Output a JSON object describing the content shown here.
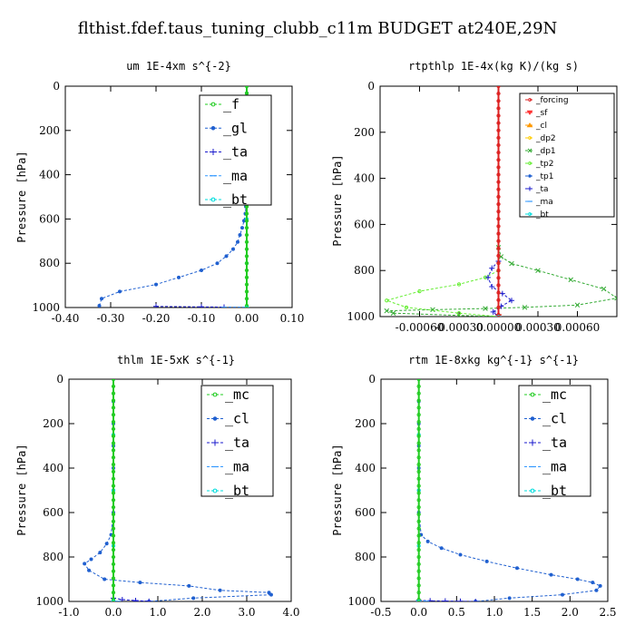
{
  "figure_title": "flthist.fdef.taus_tuning_clubb_c11m  BUDGET at240E,29N",
  "chart_data": [
    {
      "type": "line",
      "title": "um  1E-4xm s^{-2}",
      "ylabel": "Pressure [hPa]",
      "xlim": [
        -0.4,
        0.1
      ],
      "ylim": [
        1000,
        0
      ],
      "xticks": [
        "-0.40",
        "-0.30",
        "-0.20",
        "-0.10",
        "0.00",
        "0.10"
      ],
      "xtick_values": [
        -0.4,
        -0.3,
        -0.2,
        -0.1,
        0.0,
        0.1
      ],
      "yticks": [
        0,
        200,
        400,
        600,
        800,
        1000
      ],
      "legend_size": "big",
      "series": [
        {
          "name": "_f",
          "color": "#22cc22",
          "marker": "o",
          "x": [
            0,
            0,
            0,
            0,
            0,
            0,
            0,
            0,
            0,
            0,
            0,
            0,
            0,
            0,
            0,
            0,
            0,
            0,
            0,
            0,
            0,
            0,
            0,
            0,
            0,
            0,
            0,
            0,
            0,
            0,
            0,
            0
          ],
          "y": [
            0,
            32,
            64,
            96,
            128,
            160,
            192,
            224,
            256,
            288,
            320,
            352,
            384,
            416,
            448,
            480,
            512,
            544,
            576,
            608,
            640,
            672,
            704,
            736,
            768,
            800,
            832,
            864,
            896,
            928,
            960,
            992
          ]
        },
        {
          "name": "_gl",
          "color": "#2060d0",
          "marker": "*",
          "x": [
            0,
            0,
            0,
            0,
            0,
            0,
            0,
            0,
            0,
            0,
            0,
            0,
            0,
            0,
            0,
            0,
            -0.001,
            -0.002,
            -0.003,
            -0.006,
            -0.01,
            -0.015,
            -0.02,
            -0.03,
            -0.045,
            -0.065,
            -0.1,
            -0.15,
            -0.2,
            -0.28,
            -0.32,
            -0.325
          ],
          "y": [
            0,
            32,
            64,
            96,
            128,
            160,
            192,
            224,
            256,
            288,
            320,
            352,
            384,
            416,
            448,
            480,
            512,
            544,
            576,
            608,
            640,
            672,
            704,
            736,
            768,
            800,
            832,
            864,
            896,
            928,
            960,
            992
          ]
        },
        {
          "name": "_ta",
          "color": "#1a1acc",
          "marker": "+",
          "x": [
            -0.2,
            -0.1,
            -0.05,
            0.0
          ],
          "y": [
            995,
            997,
            998,
            999
          ]
        },
        {
          "name": "_ma",
          "color": "#3399ff",
          "marker": "-",
          "x": [
            -0.05,
            0.0
          ],
          "y": [
            999,
            999
          ]
        },
        {
          "name": "_bt",
          "color": "#00dddd",
          "marker": "o",
          "x": [
            0,
            0,
            0,
            0,
            0
          ],
          "y": [
            200,
            400,
            600,
            800,
            1000
          ]
        }
      ]
    },
    {
      "type": "line",
      "title": "rtpthlp  1E-4x(kg K)/(kg s)",
      "ylabel": "Pressure [hPa]",
      "xlim": [
        -0.0009,
        0.0009
      ],
      "ylim": [
        1000,
        0
      ],
      "xticks": [
        "-0.00060",
        "-0.00030",
        "0.00000",
        "0.00030",
        "0.00060"
      ],
      "xtick_values": [
        -0.0006,
        -0.0003,
        0.0,
        0.0003,
        0.0006
      ],
      "yticks": [
        0,
        200,
        400,
        600,
        800,
        1000
      ],
      "legend_size": "small",
      "series": [
        {
          "name": "_forcing",
          "color": "#dd2222",
          "marker": "o",
          "x": [
            0,
            0,
            0,
            0,
            0,
            0,
            0,
            0,
            0,
            0,
            0,
            0,
            0,
            0,
            0,
            0,
            0,
            0,
            0,
            0,
            0,
            0,
            0,
            0,
            0,
            0,
            0,
            0,
            0,
            0,
            0,
            0
          ],
          "y": [
            0,
            32,
            64,
            96,
            128,
            160,
            192,
            224,
            256,
            288,
            320,
            352,
            384,
            416,
            448,
            480,
            512,
            544,
            576,
            608,
            640,
            672,
            704,
            736,
            768,
            800,
            832,
            864,
            896,
            928,
            960,
            992
          ]
        },
        {
          "name": "_sf",
          "color": "#ff3333",
          "marker": "v",
          "x": [
            0
          ],
          "y": [
            1000
          ]
        },
        {
          "name": "_cl",
          "color": "#ff9900",
          "marker": "^",
          "x": [
            0
          ],
          "y": [
            1000
          ]
        },
        {
          "name": "_dp2",
          "color": "#ffcc00",
          "marker": "o",
          "x": [
            0
          ],
          "y": [
            1000
          ]
        },
        {
          "name": "_dp1",
          "color": "#33aa33",
          "marker": "x",
          "x": [
            0,
            2e-05,
            0.0001,
            0.0003,
            0.00055,
            0.0008,
            0.0009,
            0.0006,
            0.0002,
            -0.0001,
            -0.0005,
            -0.00085,
            -0.0008,
            -0.0003,
            0
          ],
          "y": [
            700,
            740,
            770,
            800,
            840,
            880,
            920,
            950,
            960,
            965,
            970,
            975,
            985,
            995,
            1000
          ]
        },
        {
          "name": "_tp2",
          "color": "#66ee33",
          "marker": "o",
          "x": [
            0,
            -0.0001,
            -0.0003,
            -0.0006,
            -0.00085,
            -0.0007,
            -0.0003,
            0
          ],
          "y": [
            800,
            830,
            860,
            890,
            930,
            960,
            985,
            1000
          ]
        },
        {
          "name": "_tp1",
          "color": "#2060d0",
          "marker": "*",
          "x": [
            0
          ],
          "y": [
            1000
          ]
        },
        {
          "name": "_ta",
          "color": "#1a1acc",
          "marker": "+",
          "x": [
            0,
            -5e-05,
            -8e-05,
            -5e-05,
            3e-05,
            0.0001,
            2e-05,
            -4e-05,
            0
          ],
          "y": [
            760,
            790,
            830,
            870,
            900,
            930,
            955,
            980,
            1000
          ]
        },
        {
          "name": "_ma",
          "color": "#3399ff",
          "marker": "-",
          "x": [
            0
          ],
          "y": [
            1000
          ]
        },
        {
          "name": "_bt",
          "color": "#00dddd",
          "marker": "o",
          "x": [
            0
          ],
          "y": [
            1000
          ]
        }
      ]
    },
    {
      "type": "line",
      "title": "thlm  1E-5xK s^{-1}",
      "ylabel": "Pressure [hPa]",
      "xlim": [
        -1.0,
        4.0
      ],
      "ylim": [
        1000,
        0
      ],
      "xticks": [
        "-1.0",
        "0.0",
        "1.0",
        "2.0",
        "3.0",
        "4.0"
      ],
      "xtick_values": [
        -1,
        0,
        1,
        2,
        3,
        4
      ],
      "yticks": [
        0,
        200,
        400,
        600,
        800,
        1000
      ],
      "legend_size": "big",
      "series": [
        {
          "name": "_mc",
          "color": "#22cc22",
          "marker": "o",
          "x": [
            0,
            0,
            0,
            0,
            0,
            0,
            0,
            0,
            0,
            0,
            0,
            0,
            0,
            0,
            0,
            0,
            0,
            0,
            0,
            0,
            0,
            0,
            0,
            0,
            0,
            0,
            0,
            0,
            0,
            0,
            0,
            0
          ],
          "y": [
            0,
            32,
            64,
            96,
            128,
            160,
            192,
            224,
            256,
            288,
            320,
            352,
            384,
            416,
            448,
            480,
            512,
            544,
            576,
            608,
            640,
            672,
            704,
            736,
            768,
            800,
            832,
            864,
            896,
            928,
            960,
            992
          ]
        },
        {
          "name": "_cl",
          "color": "#2060d0",
          "marker": "*",
          "x": [
            0,
            0,
            0,
            0,
            0,
            0,
            0,
            -0.05,
            -0.15,
            -0.3,
            -0.5,
            -0.65,
            -0.55,
            -0.2,
            0.6,
            1.7,
            2.4,
            3.5,
            3.55,
            1.8,
            0.8
          ],
          "y": [
            0,
            100,
            200,
            300,
            400,
            500,
            600,
            700,
            740,
            780,
            810,
            830,
            860,
            900,
            915,
            930,
            950,
            960,
            970,
            985,
            1000
          ]
        },
        {
          "name": "_ta",
          "color": "#1a1acc",
          "marker": "+",
          "x": [
            0,
            0.2,
            0.5,
            0.8,
            0.5
          ],
          "y": [
            985,
            992,
            996,
            999,
            1000
          ]
        },
        {
          "name": "_ma",
          "color": "#3399ff",
          "marker": "-",
          "x": [
            0,
            0.1
          ],
          "y": [
            999,
            999
          ]
        },
        {
          "name": "_bt",
          "color": "#00dddd",
          "marker": "o",
          "x": [
            0,
            0,
            0,
            0
          ],
          "y": [
            250,
            500,
            750,
            1000
          ]
        }
      ]
    },
    {
      "type": "line",
      "title": "rtm  1E-8xkg kg^{-1} s^{-1}",
      "ylabel": "Pressure [hPa]",
      "xlim": [
        -0.5,
        2.5
      ],
      "ylim": [
        1000,
        0
      ],
      "xticks": [
        "-0.5",
        "0.0",
        "0.5",
        "1.0",
        "1.5",
        "2.0",
        "2.5"
      ],
      "xtick_values": [
        -0.5,
        0,
        0.5,
        1.0,
        1.5,
        2.0,
        2.5
      ],
      "yticks": [
        0,
        200,
        400,
        600,
        800,
        1000
      ],
      "legend_size": "big",
      "series": [
        {
          "name": "_mc",
          "color": "#22cc22",
          "marker": "o",
          "x": [
            0,
            0,
            0,
            0,
            0,
            0,
            0,
            0,
            0,
            0,
            0,
            0,
            0,
            0,
            0,
            0,
            0,
            0,
            0,
            0,
            0,
            0,
            0,
            0,
            0,
            0,
            0,
            0,
            0,
            0,
            0,
            0
          ],
          "y": [
            0,
            32,
            64,
            96,
            128,
            160,
            192,
            224,
            256,
            288,
            320,
            352,
            384,
            416,
            448,
            480,
            512,
            544,
            576,
            608,
            640,
            672,
            704,
            736,
            768,
            800,
            832,
            864,
            896,
            928,
            960,
            992
          ]
        },
        {
          "name": "_cl",
          "color": "#2060d0",
          "marker": "*",
          "x": [
            0,
            0,
            0,
            0,
            0,
            0,
            0,
            0.03,
            0.12,
            0.3,
            0.55,
            0.9,
            1.3,
            1.75,
            2.1,
            2.3,
            2.4,
            2.35,
            1.9,
            1.2,
            0.75
          ],
          "y": [
            0,
            100,
            200,
            300,
            400,
            500,
            600,
            700,
            730,
            760,
            790,
            820,
            850,
            880,
            900,
            915,
            930,
            950,
            970,
            985,
            1000
          ]
        },
        {
          "name": "_ta",
          "color": "#1a1acc",
          "marker": "+",
          "x": [
            0,
            0.15,
            0.35,
            0.55,
            0.75
          ],
          "y": [
            995,
            997,
            998,
            999,
            1000
          ]
        },
        {
          "name": "_ma",
          "color": "#3399ff",
          "marker": "-",
          "x": [
            0,
            0.1
          ],
          "y": [
            999,
            999
          ]
        },
        {
          "name": "_bt",
          "color": "#00dddd",
          "marker": "o",
          "x": [
            0,
            0,
            0,
            0
          ],
          "y": [
            250,
            500,
            750,
            1000
          ]
        }
      ]
    }
  ]
}
